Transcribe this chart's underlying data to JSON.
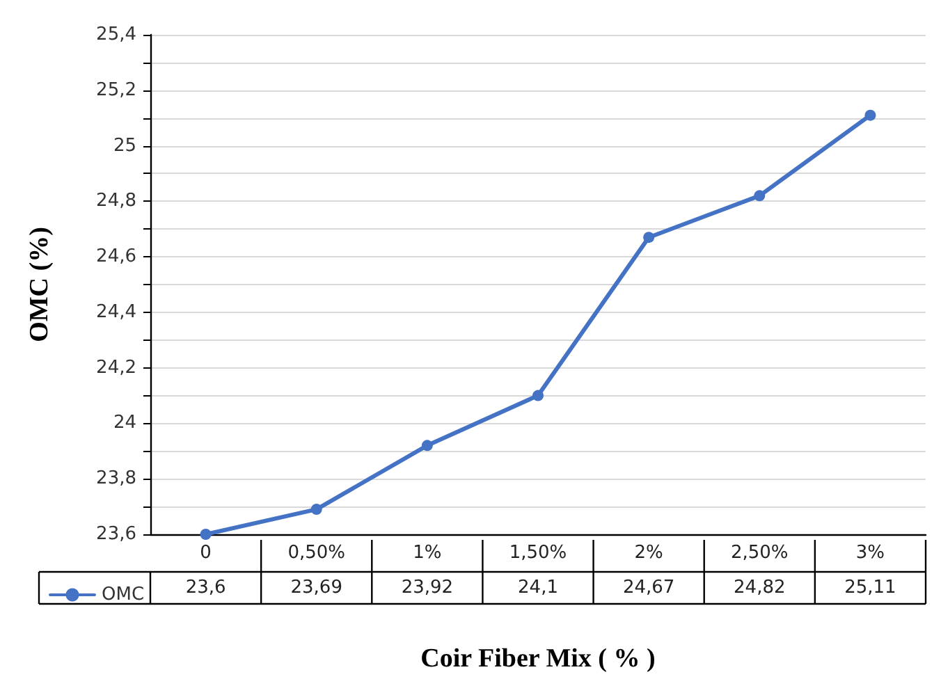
{
  "chart_data": {
    "type": "line",
    "xlabel": "Coir Fiber Mix ( % )",
    "ylabel": "OMC (%)",
    "categories": [
      "0",
      "0,50%",
      "1%",
      "1,50%",
      "2%",
      "2,50%",
      "3%"
    ],
    "series": [
      {
        "name": "OMC",
        "color": "#4472c4",
        "values": [
          23.6,
          23.69,
          23.92,
          24.1,
          24.67,
          24.82,
          25.11
        ],
        "value_labels": [
          "23,6",
          "23,69",
          "23,92",
          "24,1",
          "24,67",
          "24,82",
          "25,11"
        ]
      }
    ],
    "ylim": [
      23.6,
      25.4
    ],
    "yticks": [
      {
        "value": 23.6,
        "label": "23,6"
      },
      {
        "value": 23.7,
        "label": null
      },
      {
        "value": 23.8,
        "label": "23,8"
      },
      {
        "value": 23.9,
        "label": null
      },
      {
        "value": 24,
        "label": "24"
      },
      {
        "value": 24.1,
        "label": null
      },
      {
        "value": 24.2,
        "label": "24,2"
      },
      {
        "value": 24.3,
        "label": null
      },
      {
        "value": 24.4,
        "label": "24,4"
      },
      {
        "value": 24.5,
        "label": null
      },
      {
        "value": 24.6,
        "label": "24,6"
      },
      {
        "value": 24.7,
        "label": null
      },
      {
        "value": 24.8,
        "label": "24,8"
      },
      {
        "value": 24.9,
        "label": null
      },
      {
        "value": 25,
        "label": "25"
      },
      {
        "value": 25.1,
        "label": null
      },
      {
        "value": 25.2,
        "label": "25,2"
      },
      {
        "value": 25.3,
        "label": null
      },
      {
        "value": 25.4,
        "label": "25,4"
      }
    ],
    "grid": "y",
    "legend": "bottom left",
    "marker": "circle",
    "line_style": "solid"
  }
}
